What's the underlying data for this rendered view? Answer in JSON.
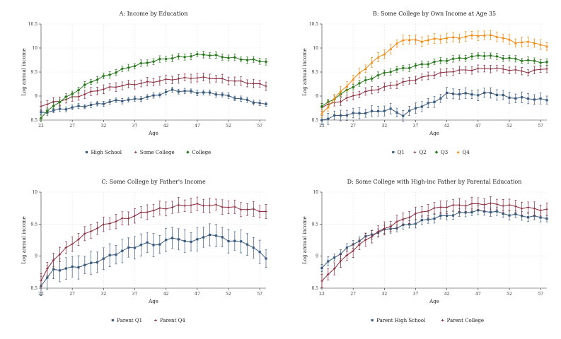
{
  "chart_data": [
    {
      "type": "line",
      "title": "A: Income by Education",
      "xlabel": "Age",
      "ylabel": "Log annual income",
      "xlim": [
        22,
        58
      ],
      "ylim": [
        8.5,
        10.5
      ],
      "xticks": [
        22,
        27,
        32,
        37,
        42,
        47,
        52,
        57
      ],
      "yticks": [
        8.5,
        9,
        9.5,
        10,
        10.5
      ],
      "ytick_labels": [
        "8.5",
        "9",
        "9.5",
        "10",
        "10.5"
      ],
      "legend_position": "bottom",
      "series": [
        {
          "name": "High School",
          "color": "#3a5b7d",
          "marker": "square",
          "err": 0.05,
          "anchors": [
            [
              22,
              8.65
            ],
            [
              25,
              8.72
            ],
            [
              28,
              8.78
            ],
            [
              31,
              8.83
            ],
            [
              34,
              8.9
            ],
            [
              37,
              8.93
            ],
            [
              40,
              9.0
            ],
            [
              42,
              9.08
            ],
            [
              43,
              9.12
            ],
            [
              47,
              9.08
            ],
            [
              50,
              9.05
            ],
            [
              53,
              8.97
            ],
            [
              56,
              8.88
            ],
            [
              58,
              8.82
            ]
          ]
        },
        {
          "name": "Some College",
          "color": "#8a2a3b",
          "marker": "plus",
          "err": 0.08,
          "anchors": [
            [
              22,
              8.8
            ],
            [
              25,
              8.9
            ],
            [
              28,
              9.0
            ],
            [
              31,
              9.12
            ],
            [
              34,
              9.2
            ],
            [
              37,
              9.25
            ],
            [
              40,
              9.3
            ],
            [
              43,
              9.35
            ],
            [
              46,
              9.38
            ],
            [
              49,
              9.38
            ],
            [
              52,
              9.33
            ],
            [
              55,
              9.28
            ],
            [
              58,
              9.22
            ]
          ]
        },
        {
          "name": "College",
          "color": "#2a7a1e",
          "marker": "diamond",
          "err": 0.06,
          "anchors": [
            [
              22,
              8.55
            ],
            [
              24,
              8.8
            ],
            [
              27,
              9.05
            ],
            [
              30,
              9.3
            ],
            [
              33,
              9.45
            ],
            [
              36,
              9.6
            ],
            [
              39,
              9.7
            ],
            [
              42,
              9.78
            ],
            [
              45,
              9.82
            ],
            [
              48,
              9.87
            ],
            [
              51,
              9.82
            ],
            [
              54,
              9.77
            ],
            [
              58,
              9.72
            ]
          ]
        }
      ]
    },
    {
      "type": "line",
      "title": "B: Some College by Own Income at Age 35",
      "xlabel": "Age",
      "ylabel": "Log annual income",
      "xlim": [
        22,
        58
      ],
      "ylim": [
        8.5,
        10.5
      ],
      "xticks": [
        22,
        27,
        32,
        37,
        42,
        47,
        52,
        57
      ],
      "yticks": [
        8.5,
        9,
        9.5,
        10,
        10.5
      ],
      "ytick_labels": [
        "8.5",
        "9",
        "9.5",
        "10",
        "10.5"
      ],
      "legend_position": "bottom",
      "series": [
        {
          "name": "Q1",
          "color": "#3a5b7d",
          "marker": "square",
          "err": 0.1,
          "anchors": [
            [
              22,
              8.5
            ],
            [
              24,
              8.58
            ],
            [
              27,
              8.63
            ],
            [
              30,
              8.67
            ],
            [
              33,
              8.72
            ],
            [
              35,
              8.6
            ],
            [
              37,
              8.75
            ],
            [
              40,
              8.88
            ],
            [
              42,
              9.05
            ],
            [
              44,
              9.05
            ],
            [
              47,
              9.03
            ],
            [
              49,
              9.07
            ],
            [
              52,
              8.97
            ],
            [
              55,
              8.95
            ],
            [
              58,
              8.92
            ]
          ]
        },
        {
          "name": "Q2",
          "color": "#8a2a3b",
          "marker": "plus",
          "err": 0.07,
          "anchors": [
            [
              22,
              8.78
            ],
            [
              25,
              8.9
            ],
            [
              28,
              9.05
            ],
            [
              31,
              9.15
            ],
            [
              34,
              9.25
            ],
            [
              37,
              9.35
            ],
            [
              40,
              9.45
            ],
            [
              43,
              9.52
            ],
            [
              46,
              9.55
            ],
            [
              49,
              9.58
            ],
            [
              52,
              9.55
            ],
            [
              55,
              9.5
            ],
            [
              58,
              9.58
            ]
          ]
        },
        {
          "name": "Q3",
          "color": "#2a7a1e",
          "marker": "diamond",
          "err": 0.06,
          "anchors": [
            [
              22,
              8.78
            ],
            [
              24,
              8.95
            ],
            [
              27,
              9.2
            ],
            [
              30,
              9.38
            ],
            [
              33,
              9.52
            ],
            [
              36,
              9.6
            ],
            [
              39,
              9.68
            ],
            [
              42,
              9.75
            ],
            [
              45,
              9.8
            ],
            [
              48,
              9.85
            ],
            [
              51,
              9.8
            ],
            [
              54,
              9.75
            ],
            [
              58,
              9.7
            ]
          ]
        },
        {
          "name": "Q4",
          "color": "#f08a10",
          "marker": "triangle",
          "err": 0.09,
          "anchors": [
            [
              22,
              8.62
            ],
            [
              24,
              8.95
            ],
            [
              27,
              9.35
            ],
            [
              30,
              9.7
            ],
            [
              33,
              9.98
            ],
            [
              35,
              10.18
            ],
            [
              38,
              10.15
            ],
            [
              41,
              10.2
            ],
            [
              44,
              10.22
            ],
            [
              47,
              10.27
            ],
            [
              50,
              10.25
            ],
            [
              53,
              10.12
            ],
            [
              56,
              10.12
            ],
            [
              58,
              10.02
            ]
          ]
        }
      ]
    },
    {
      "type": "line",
      "title": "C: Some College by Father's Income",
      "xlabel": "Age",
      "ylabel": "Log annual income",
      "xlim": [
        22,
        58
      ],
      "ylim": [
        8.5,
        10
      ],
      "xticks": [
        22,
        27,
        32,
        37,
        42,
        47,
        52,
        57
      ],
      "yticks": [
        8.5,
        9,
        9.5,
        10
      ],
      "ytick_labels": [
        "8.5",
        "9",
        "9.5",
        "10"
      ],
      "legend_position": "bottom",
      "series": [
        {
          "name": "Parent Q1",
          "color": "#3a5b7d",
          "marker": "square",
          "err": 0.16,
          "anchors": [
            [
              22,
              8.55
            ],
            [
              24,
              8.78
            ],
            [
              27,
              8.82
            ],
            [
              30,
              8.88
            ],
            [
              33,
              9.0
            ],
            [
              36,
              9.12
            ],
            [
              39,
              9.2
            ],
            [
              41,
              9.18
            ],
            [
              43,
              9.3
            ],
            [
              45,
              9.22
            ],
            [
              48,
              9.28
            ],
            [
              49,
              9.35
            ],
            [
              52,
              9.25
            ],
            [
              55,
              9.2
            ],
            [
              58,
              8.98
            ]
          ]
        },
        {
          "name": "Parent Q4",
          "color": "#8a2a3b",
          "marker": "plus",
          "err": 0.1,
          "anchors": [
            [
              22,
              8.62
            ],
            [
              24,
              8.95
            ],
            [
              27,
              9.2
            ],
            [
              30,
              9.4
            ],
            [
              33,
              9.52
            ],
            [
              36,
              9.6
            ],
            [
              39,
              9.7
            ],
            [
              42,
              9.75
            ],
            [
              45,
              9.8
            ],
            [
              48,
              9.8
            ],
            [
              51,
              9.78
            ],
            [
              54,
              9.74
            ],
            [
              58,
              9.7
            ]
          ]
        }
      ]
    },
    {
      "type": "line",
      "title": "D: Some College with High-inc Father by Parental Education",
      "xlabel": "Age",
      "ylabel": "Log annual income",
      "xlim": [
        22,
        58
      ],
      "ylim": [
        8.5,
        10
      ],
      "xticks": [
        22,
        27,
        32,
        37,
        42,
        47,
        52,
        57
      ],
      "yticks": [
        8.5,
        9,
        9.5,
        10
      ],
      "ytick_labels": [
        "8.5",
        "9",
        "9.5",
        "10"
      ],
      "legend_position": "bottom",
      "series": [
        {
          "name": "Parent High School",
          "color": "#3a5b7d",
          "marker": "square",
          "err": 0.06,
          "anchors": [
            [
              22,
              8.83
            ],
            [
              25,
              9.05
            ],
            [
              28,
              9.25
            ],
            [
              31,
              9.38
            ],
            [
              34,
              9.45
            ],
            [
              37,
              9.52
            ],
            [
              40,
              9.6
            ],
            [
              43,
              9.65
            ],
            [
              46,
              9.7
            ],
            [
              49,
              9.7
            ],
            [
              52,
              9.65
            ],
            [
              55,
              9.62
            ],
            [
              58,
              9.6
            ]
          ]
        },
        {
          "name": "Parent College",
          "color": "#8a2a3b",
          "marker": "plus",
          "err": 0.09,
          "anchors": [
            [
              22,
              8.6
            ],
            [
              24,
              8.82
            ],
            [
              27,
              9.1
            ],
            [
              30,
              9.32
            ],
            [
              33,
              9.48
            ],
            [
              36,
              9.62
            ],
            [
              39,
              9.72
            ],
            [
              42,
              9.78
            ],
            [
              45,
              9.8
            ],
            [
              48,
              9.82
            ],
            [
              51,
              9.8
            ],
            [
              54,
              9.76
            ],
            [
              58,
              9.72
            ]
          ]
        }
      ]
    }
  ]
}
